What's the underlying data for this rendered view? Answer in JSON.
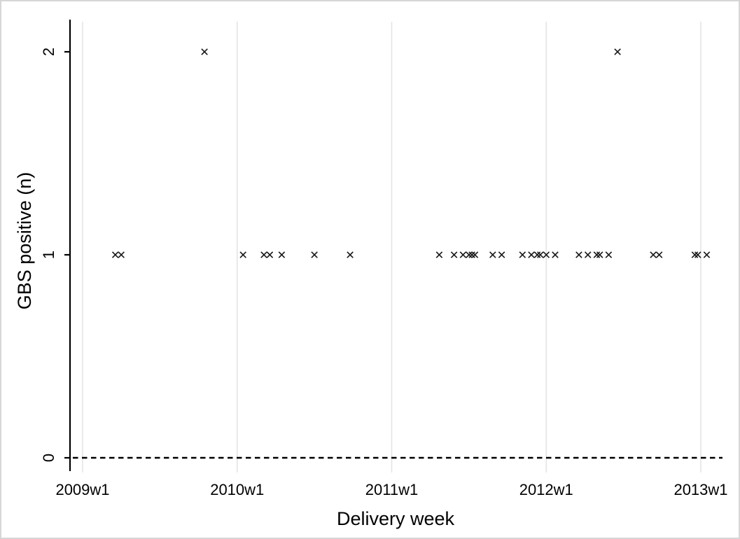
{
  "figure": {
    "background_color": "#ffffff",
    "frame_color": "#d6d6d6"
  },
  "chart_data": {
    "type": "scatter",
    "title": "",
    "xlabel": "Delivery week",
    "ylabel": "GBS positive (n)",
    "marker": "x",
    "marker_color": "#161616",
    "axis_color": "#000000",
    "gridline_color": "#e4e4e4",
    "grid": "vertical-only",
    "legend": "none",
    "x_axis_unit": "weeks since 2009w1",
    "x_tick_labels": [
      "2009w1",
      "2010w1",
      "2011w1",
      "2012w1",
      "2013w1"
    ],
    "x_tick_weeks": [
      0,
      52,
      104,
      156,
      208
    ],
    "y_tick_labels": [
      "0",
      "1",
      "2"
    ],
    "y_tick_values": [
      0,
      1,
      2
    ],
    "ylim": [
      -0.07,
      2.16
    ],
    "xlim_weeks": [
      -4.2,
      217.5
    ],
    "zero_line": {
      "y": 0,
      "style": "dashed",
      "color": "#000000"
    },
    "points": [
      {
        "date": "2009w12",
        "week": 11,
        "n": 1
      },
      {
        "date": "2009w14",
        "week": 13,
        "n": 1
      },
      {
        "date": "2009w42",
        "week": 41,
        "n": 2
      },
      {
        "date": "2010w3",
        "week": 54,
        "n": 1
      },
      {
        "date": "2010w10",
        "week": 61,
        "n": 1
      },
      {
        "date": "2010w12",
        "week": 63,
        "n": 1
      },
      {
        "date": "2010w16",
        "week": 67,
        "n": 1
      },
      {
        "date": "2010w27",
        "week": 78,
        "n": 1
      },
      {
        "date": "2010w39",
        "week": 90,
        "n": 1
      },
      {
        "date": "2011w17",
        "week": 120,
        "n": 1
      },
      {
        "date": "2011w22",
        "week": 125,
        "n": 1
      },
      {
        "date": "2011w25",
        "week": 128,
        "n": 1
      },
      {
        "date": "2011w27",
        "week": 130,
        "n": 1
      },
      {
        "date": "2011w28",
        "week": 131,
        "n": 1
      },
      {
        "date": "2011w29",
        "week": 132,
        "n": 1
      },
      {
        "date": "2011w35",
        "week": 138,
        "n": 1
      },
      {
        "date": "2011w38",
        "week": 141,
        "n": 1
      },
      {
        "date": "2011w45",
        "week": 148,
        "n": 1
      },
      {
        "date": "2011w48",
        "week": 151,
        "n": 1
      },
      {
        "date": "2011w50",
        "week": 153,
        "n": 1
      },
      {
        "date": "2011w51",
        "week": 154,
        "n": 1
      },
      {
        "date": "2012w1",
        "week": 156,
        "n": 1
      },
      {
        "date": "2012w4",
        "week": 159,
        "n": 1
      },
      {
        "date": "2012w12",
        "week": 167,
        "n": 1
      },
      {
        "date": "2012w15",
        "week": 170,
        "n": 1
      },
      {
        "date": "2012w18",
        "week": 173,
        "n": 1
      },
      {
        "date": "2012w19",
        "week": 174,
        "n": 1
      },
      {
        "date": "2012w22",
        "week": 177,
        "n": 1
      },
      {
        "date": "2012w25",
        "week": 180,
        "n": 2
      },
      {
        "date": "2012w37",
        "week": 192,
        "n": 1
      },
      {
        "date": "2012w39",
        "week": 194,
        "n": 1
      },
      {
        "date": "2012w51",
        "week": 206,
        "n": 1
      },
      {
        "date": "2012w52",
        "week": 207,
        "n": 1
      },
      {
        "date": "2013w3",
        "week": 210,
        "n": 1
      }
    ]
  }
}
